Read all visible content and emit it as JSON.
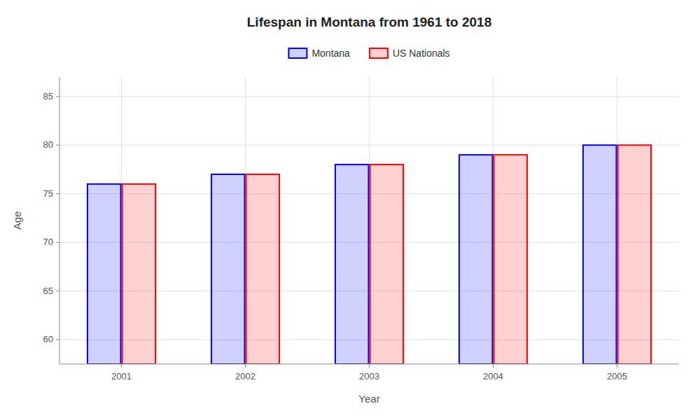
{
  "chart_data": {
    "type": "bar",
    "title": "Lifespan in Montana from 1961 to 2018",
    "x_label": "Year",
    "y_label": "Age",
    "categories": [
      "2001",
      "2002",
      "2003",
      "2004",
      "2005"
    ],
    "series": [
      {
        "name": "Montana",
        "color": "#0000ff",
        "values": [
          76,
          77,
          78,
          79,
          80
        ]
      },
      {
        "name": "US Nationals",
        "color": "#ff0000",
        "values": [
          76,
          77,
          78,
          79,
          80
        ]
      }
    ],
    "ylim": [
      57.5,
      87
    ],
    "yticks": [
      60,
      65,
      70,
      75,
      80,
      85
    ],
    "grid": true,
    "legend": "top"
  }
}
